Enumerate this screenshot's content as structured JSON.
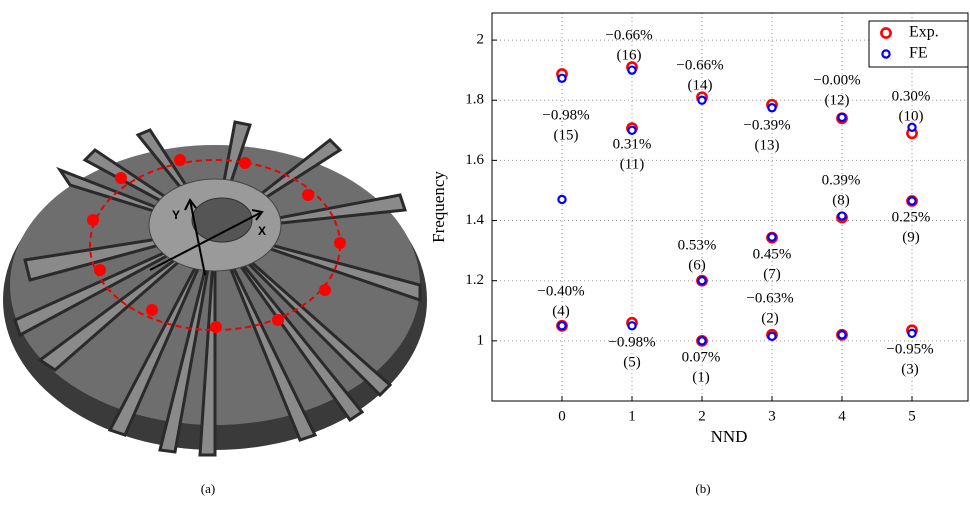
{
  "figure_a": {
    "caption": "(a)",
    "axis_labels": [
      "X",
      "Y"
    ]
  },
  "chart_data": {
    "type": "scatter",
    "caption": "(b)",
    "x_label": "NND",
    "y_label": "Frequency",
    "xlim": [
      -1,
      5.8
    ],
    "ylim": [
      0.8,
      2.09
    ],
    "xticks": [
      0,
      1,
      2,
      3,
      4,
      5
    ],
    "yticks": [
      1,
      1.2,
      1.4,
      1.6,
      1.8,
      2
    ],
    "grid": true,
    "legend": "upper right",
    "series": [
      {
        "name": "Exp.",
        "color": "#ff0000",
        "x": [
          0,
          0,
          1,
          1,
          1,
          2,
          2,
          2,
          3,
          3,
          3,
          4,
          4,
          4,
          5,
          5,
          5
        ],
        "values": [
          1.887,
          1.05,
          1.91,
          1.707,
          1.06,
          1.81,
          1.2,
          1.0,
          1.785,
          1.343,
          1.02,
          1.74,
          1.41,
          1.02,
          1.69,
          1.465,
          1.035
        ]
      },
      {
        "name": "FE",
        "color": "#0000ff",
        "x": [
          0,
          0,
          0,
          1,
          1,
          1,
          2,
          2,
          2,
          3,
          3,
          3,
          4,
          4,
          4,
          5,
          5,
          5
        ],
        "values": [
          1.873,
          1.47,
          1.05,
          1.9,
          1.7,
          1.05,
          1.8,
          1.2,
          1.0,
          1.775,
          1.345,
          1.015,
          1.743,
          1.415,
          1.02,
          1.71,
          1.465,
          1.025
        ]
      }
    ],
    "annotations": [
      {
        "error": "−0.66%",
        "mode": "(16)"
      },
      {
        "error": "−0.98%",
        "mode": "(15)"
      },
      {
        "error": "−0.66%",
        "mode": "(14)"
      },
      {
        "error": "0.31%",
        "mode": "(11)"
      },
      {
        "error": "−0.39%",
        "mode": "(13)"
      },
      {
        "error": "−0.00%",
        "mode": "(12)"
      },
      {
        "error": "0.30%",
        "mode": "(10)"
      },
      {
        "error": "0.39%",
        "mode": "(8)"
      },
      {
        "error": "0.25%",
        "mode": "(9)"
      },
      {
        "error": "0.53%",
        "mode": "(6)"
      },
      {
        "error": "0.45%",
        "mode": "(7)"
      },
      {
        "error": "−0.40%",
        "mode": "(4)"
      },
      {
        "error": "−0.63%",
        "mode": "(2)"
      },
      {
        "error": "−0.98%",
        "mode": "(5)"
      },
      {
        "error": "0.07%",
        "mode": "(1)"
      },
      {
        "error": "−0.95%",
        "mode": "(3)"
      }
    ]
  }
}
